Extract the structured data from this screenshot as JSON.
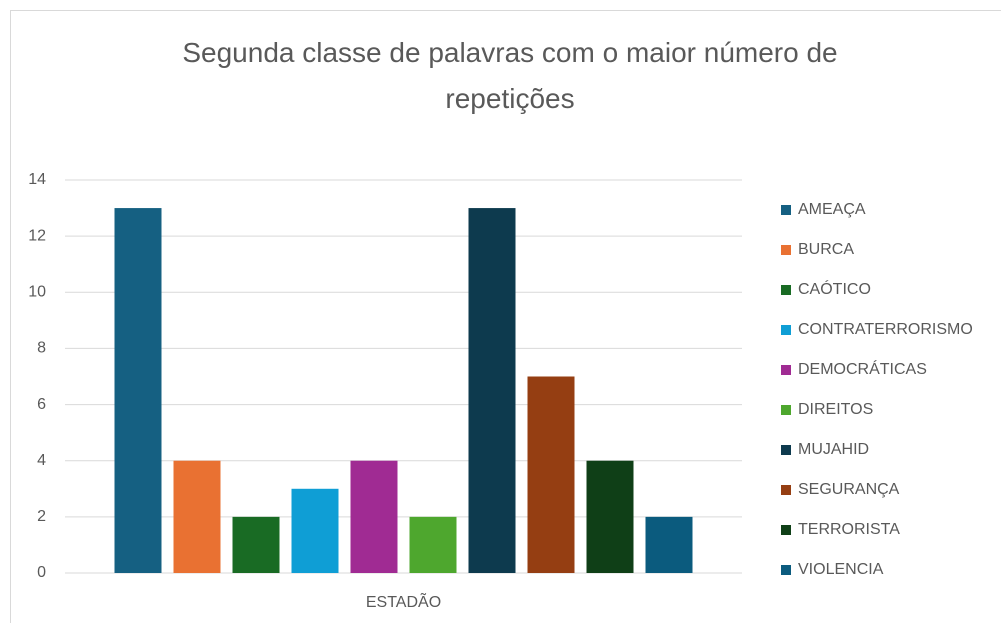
{
  "chart_data": {
    "type": "bar",
    "title": "Segunda classe de palavras com o maior número de repetições",
    "categories": [
      "ESTADÃO"
    ],
    "series": [
      {
        "name": "AMEAÇA",
        "color": "#156082",
        "values": [
          13
        ]
      },
      {
        "name": "BURCA",
        "color": "#e97132",
        "values": [
          4
        ]
      },
      {
        "name": "CAÓTICO",
        "color": "#196b24",
        "values": [
          2
        ]
      },
      {
        "name": "CONTRATERRORISMO",
        "color": "#0f9ed5",
        "values": [
          3
        ]
      },
      {
        "name": "DEMOCRÁTICAS",
        "color": "#a02b93",
        "values": [
          4
        ]
      },
      {
        "name": "DIREITOS",
        "color": "#4ea72e",
        "values": [
          2
        ]
      },
      {
        "name": "MUJAHID",
        "color": "#0d3a4e",
        "values": [
          13
        ]
      },
      {
        "name": "SEGURANÇA",
        "color": "#953e12",
        "values": [
          7
        ]
      },
      {
        "name": "TERRORISTA",
        "color": "#0f3f17",
        "values": [
          4
        ]
      },
      {
        "name": "VIOLENCIA",
        "color": "#0b5b7e",
        "values": [
          2
        ]
      }
    ],
    "ylim": [
      0,
      14
    ],
    "yticks": [
      0,
      2,
      4,
      6,
      8,
      10,
      12,
      14
    ],
    "grid": true,
    "legend": "right"
  }
}
